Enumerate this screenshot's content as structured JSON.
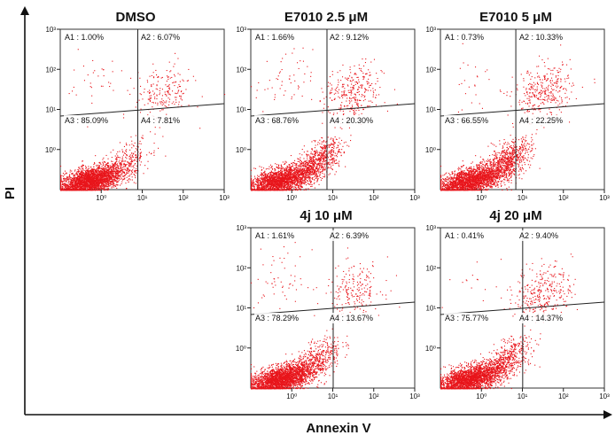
{
  "figure": {
    "xlabel": "Annexin V",
    "ylabel": "PI",
    "dot_color": "#e8151b"
  },
  "chart_data": [
    {
      "type": "scatter",
      "title": "DMSO",
      "x_scale": "log",
      "y_scale": "log",
      "xlim": [
        0.1,
        1000
      ],
      "ylim": [
        0.1,
        1000
      ],
      "x_ticks": [
        "10⁰",
        "10¹",
        "10²",
        "10³"
      ],
      "y_ticks": [
        "10⁰",
        "10¹",
        "10²",
        "10³"
      ],
      "quadrants": [
        {
          "label": "A1 : 1.00%",
          "value": 1.0
        },
        {
          "label": "A2 : 6.07%",
          "value": 6.07
        },
        {
          "label": "A3 : 85.09%",
          "value": 85.09
        },
        {
          "label": "A4 : 7.81%",
          "value": 7.81
        }
      ]
    },
    {
      "type": "scatter",
      "title": "E7010 2.5 μM",
      "x_scale": "log",
      "y_scale": "log",
      "xlim": [
        0.1,
        1000
      ],
      "ylim": [
        0.1,
        1000
      ],
      "x_ticks": [
        "10⁰",
        "10¹",
        "10²",
        "10³"
      ],
      "y_ticks": [
        "10⁰",
        "10¹",
        "10²",
        "10³"
      ],
      "quadrants": [
        {
          "label": "A1 : 1.66%",
          "value": 1.66
        },
        {
          "label": "A2 : 9.12%",
          "value": 9.12
        },
        {
          "label": "A3 : 68.76%",
          "value": 68.76
        },
        {
          "label": "A4 : 20.30%",
          "value": 20.3
        }
      ]
    },
    {
      "type": "scatter",
      "title": "E7010 5 μM",
      "x_scale": "log",
      "y_scale": "log",
      "xlim": [
        0.1,
        1000
      ],
      "ylim": [
        0.1,
        1000
      ],
      "x_ticks": [
        "10⁰",
        "10¹",
        "10²",
        "10³"
      ],
      "y_ticks": [
        "10⁰",
        "10¹",
        "10²",
        "10³"
      ],
      "quadrants": [
        {
          "label": "A1 : 0.73%",
          "value": 0.73
        },
        {
          "label": "A2 : 10.33%",
          "value": 10.33
        },
        {
          "label": "A3 : 66.55%",
          "value": 66.55
        },
        {
          "label": "A4 : 22.25%",
          "value": 22.25
        }
      ]
    },
    {
      "type": "scatter",
      "title": "4j 10 μM",
      "x_scale": "log",
      "y_scale": "log",
      "xlim": [
        0.1,
        1000
      ],
      "ylim": [
        0.1,
        1000
      ],
      "x_ticks": [
        "10⁰",
        "10¹",
        "10²",
        "10³"
      ],
      "y_ticks": [
        "10⁰",
        "10¹",
        "10²",
        "10³"
      ],
      "quadrants": [
        {
          "label": "A1 : 1.61%",
          "value": 1.61
        },
        {
          "label": "A2 : 6.39%",
          "value": 6.39
        },
        {
          "label": "A3 : 78.29%",
          "value": 78.29
        },
        {
          "label": "A4 : 13.67%",
          "value": 13.67
        }
      ]
    },
    {
      "type": "scatter",
      "title": "4j 20 μM",
      "x_scale": "log",
      "y_scale": "log",
      "xlim": [
        0.1,
        1000
      ],
      "ylim": [
        0.1,
        1000
      ],
      "x_ticks": [
        "10⁰",
        "10¹",
        "10²",
        "10³"
      ],
      "y_ticks": [
        "10⁰",
        "10¹",
        "10²",
        "10³"
      ],
      "quadrants": [
        {
          "label": "A1 : 0.41%",
          "value": 0.41
        },
        {
          "label": "A2 : 9.40%",
          "value": 9.4
        },
        {
          "label": "A3 : 75.77%",
          "value": 75.77
        },
        {
          "label": "A4 : 14.37%",
          "value": 14.37
        }
      ]
    }
  ]
}
